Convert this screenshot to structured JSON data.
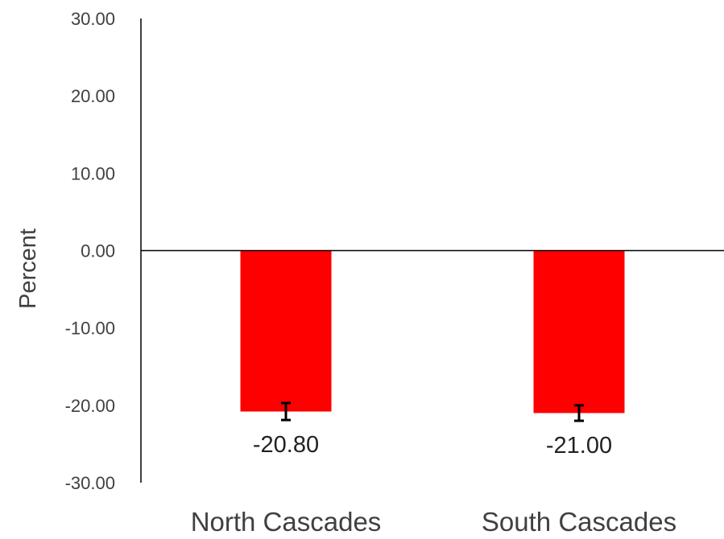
{
  "chart_data": {
    "type": "bar",
    "title": "",
    "xlabel": "",
    "ylabel": "Percent",
    "ylim": [
      -30,
      30
    ],
    "yticks": [
      30,
      20,
      10,
      0,
      -10,
      -20,
      -30
    ],
    "ytick_labels": [
      "30.00",
      "20.00",
      "10.00",
      "0.00",
      "-10.00",
      "-20.00",
      "-30.00"
    ],
    "categories": [
      "North Cascades",
      "South Cascades"
    ],
    "values": [
      -20.8,
      -21.0
    ],
    "data_labels": [
      "-20.80",
      "-21.00"
    ],
    "error_bars": [
      {
        "low": -21.9,
        "high": -19.7
      },
      {
        "low": -22.0,
        "high": -20.0
      }
    ],
    "bar_color": "#ff0000",
    "error_bar_color": "#000000",
    "grid": false,
    "legend": "none"
  }
}
